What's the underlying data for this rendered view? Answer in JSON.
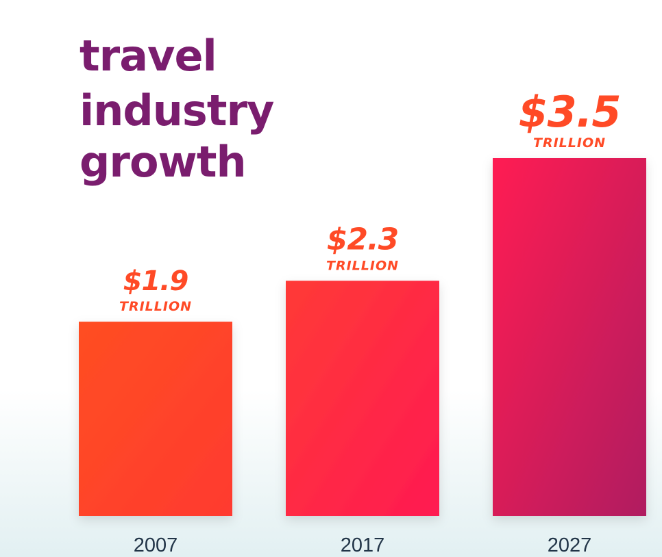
{
  "chart_data": {
    "type": "bar",
    "title_lines": [
      "travel",
      "industry",
      "growth"
    ],
    "categories": [
      "2007",
      "2017",
      "2027"
    ],
    "values": [
      1.9,
      2.3,
      3.5
    ],
    "value_labels": [
      "$1.9",
      "$2.3",
      "$3.5"
    ],
    "unit_label": "TRILLION",
    "xlabel": "",
    "ylabel": "",
    "ylim": [
      0,
      3.5
    ],
    "grid": false,
    "colors": {
      "title": "#7a1d6e",
      "value_text": "#ff4a26",
      "year_text": "#213447",
      "bar_gradients": [
        [
          "#ff4e22",
          "#ff3a30"
        ],
        [
          "#ff3a36",
          "#ff1a52"
        ],
        [
          "#ff1a52",
          "#b01a60"
        ]
      ]
    }
  }
}
